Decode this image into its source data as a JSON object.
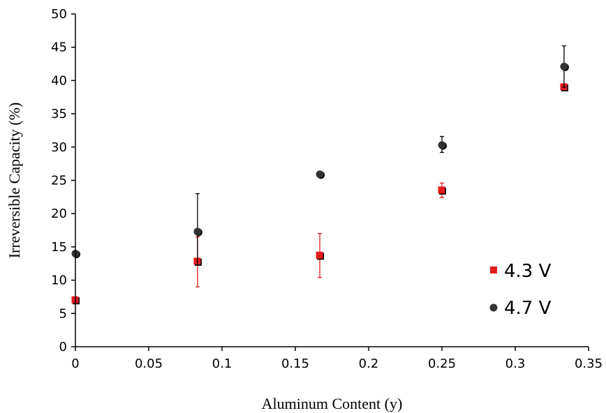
{
  "chart_data": {
    "type": "scatter",
    "xlabel": "Aluminum Content (y)",
    "ylabel": "Irreversible Capacity (%)",
    "xlim": [
      0,
      0.35
    ],
    "ylim": [
      0,
      50
    ],
    "x_ticks": [
      "0",
      "0.05",
      "0.1",
      "0.15",
      "0.2",
      "0.25",
      "0.3",
      "0.35"
    ],
    "y_ticks": [
      "0",
      "5",
      "10",
      "15",
      "20",
      "25",
      "30",
      "35",
      "40",
      "45",
      "50"
    ],
    "grid": false,
    "legend_position": "bottom-right",
    "series": [
      {
        "name": "4.3 V",
        "marker": "square",
        "color": "#e31a1c",
        "shadow_color": "#000000",
        "error_color": "#e31a1c",
        "points": [
          {
            "x": 0.0,
            "y": 7.0,
            "err_low": null,
            "err_high": null
          },
          {
            "x": 0.0833,
            "y": 12.8,
            "err_low": 9.0,
            "err_high": 16.5
          },
          {
            "x": 0.1667,
            "y": 13.7,
            "err_low": 10.4,
            "err_high": 17.0
          },
          {
            "x": 0.25,
            "y": 23.5,
            "err_low": 22.4,
            "err_high": 24.6
          },
          {
            "x": 0.3333,
            "y": 39.0,
            "err_low": null,
            "err_high": null
          }
        ]
      },
      {
        "name": "4.7 V",
        "marker": "circle",
        "color": "#333333",
        "shadow_color": "#000000",
        "error_color": "#000000",
        "points": [
          {
            "x": 0.0,
            "y": 14.0,
            "err_low": null,
            "err_high": null
          },
          {
            "x": 0.0833,
            "y": 17.3,
            "err_low": 12.3,
            "err_high": 23.0
          },
          {
            "x": 0.1667,
            "y": 25.9,
            "err_low": null,
            "err_high": null
          },
          {
            "x": 0.25,
            "y": 30.3,
            "err_low": 29.2,
            "err_high": 31.6
          },
          {
            "x": 0.3333,
            "y": 42.1,
            "err_low": 39.0,
            "err_high": 45.2
          }
        ]
      }
    ]
  }
}
